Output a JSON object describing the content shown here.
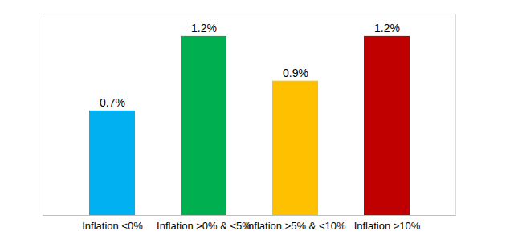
{
  "chart_data": {
    "type": "bar",
    "categories": [
      "Inflation <0%",
      "Inflation >0% & <5%",
      "Inflation >5% & <10%",
      "Inflation >10%"
    ],
    "values": [
      0.7,
      1.2,
      0.9,
      1.2
    ],
    "value_labels": [
      "0.7%",
      "1.2%",
      "0.9%",
      "1.2%"
    ],
    "colors": [
      "#00b0f0",
      "#00b050",
      "#ffc000",
      "#c00000"
    ],
    "ylim": [
      0,
      1.35
    ],
    "data_labels": true,
    "tick_labels": "x",
    "grid": false
  }
}
